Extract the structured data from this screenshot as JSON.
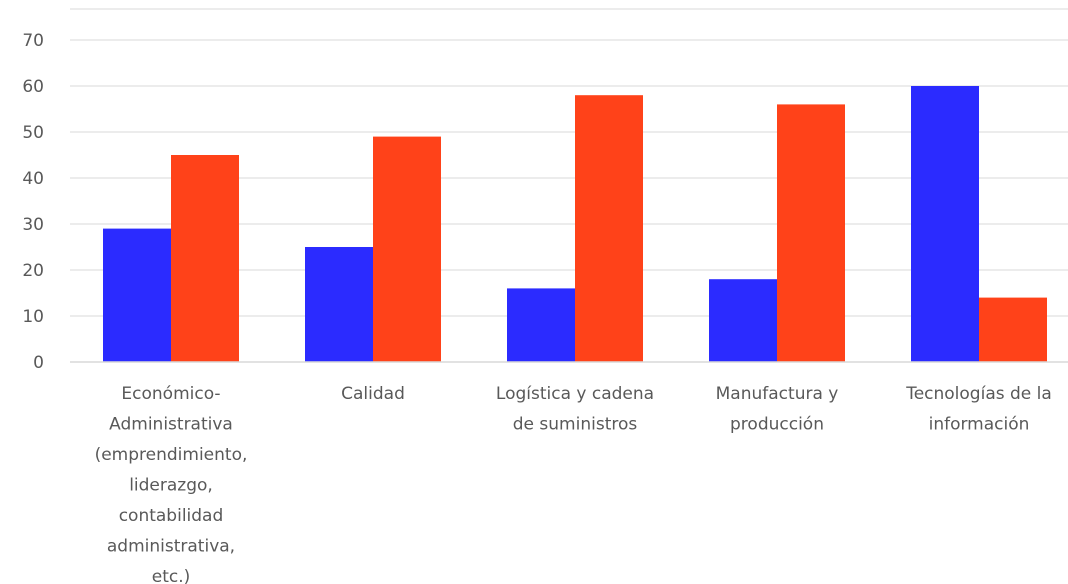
{
  "chart_data": {
    "type": "bar",
    "categories": [
      [
        "Económico-",
        "Administrativa",
        "(emprendimiento,",
        "liderazgo,",
        "contabilidad",
        "administrativa,",
        "etc.)"
      ],
      [
        "Calidad"
      ],
      [
        "Logística y cadena",
        "de suministros"
      ],
      [
        "Manufactura y",
        "producción"
      ],
      [
        "Tecnologías de la",
        "información"
      ]
    ],
    "series": [
      {
        "color": "#2b2bff",
        "values": [
          29,
          25,
          16,
          18,
          60
        ]
      },
      {
        "color": "#ff4219",
        "values": [
          45,
          49,
          58,
          56,
          14
        ]
      }
    ],
    "yticks": [
      0,
      10,
      20,
      30,
      40,
      50,
      60,
      70
    ],
    "ylim": [
      0,
      70
    ],
    "grid": true,
    "legend": "none"
  }
}
